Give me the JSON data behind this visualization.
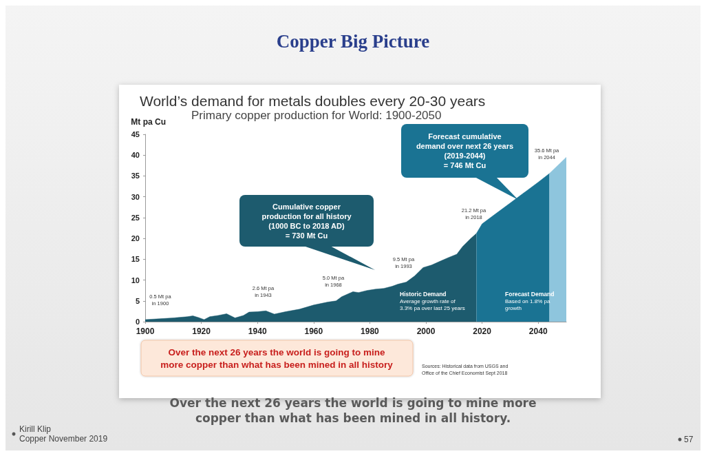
{
  "chart_data": {
    "type": "area",
    "title": "World’s demand for metals doubles every 20-30 years",
    "subtitle": "Primary copper production for World: 1900-2050",
    "ylabel": "Mt pa Cu",
    "xlim": [
      1900,
      2050
    ],
    "xticks": [
      1900,
      1920,
      1940,
      1960,
      1980,
      2000,
      2020,
      2040
    ],
    "ylim": [
      0,
      45
    ],
    "yticks": [
      0,
      5,
      10,
      15,
      20,
      25,
      30,
      35,
      40,
      45
    ],
    "grid": false,
    "series": [
      {
        "color": "#1d5b6e",
        "x": [
          1900,
          1905,
          1910,
          1915,
          1917,
          1919,
          1921,
          1923,
          1926,
          1929,
          1932,
          1935,
          1937,
          1940,
          1943,
          1946,
          1950,
          1955,
          1960,
          1965,
          1968,
          1970,
          1974,
          1976,
          1979,
          1982,
          1985,
          1988,
          1990,
          1993,
          1996,
          1999,
          2002,
          2005,
          2008,
          2011,
          2013,
          2016,
          2018
        ],
        "values": [
          0.5,
          0.7,
          0.9,
          1.2,
          1.4,
          1.0,
          0.5,
          1.2,
          1.5,
          1.9,
          0.9,
          1.5,
          2.3,
          2.4,
          2.6,
          1.8,
          2.4,
          3.0,
          4.0,
          4.7,
          5.0,
          6.0,
          7.2,
          7.0,
          7.5,
          7.8,
          8.0,
          8.5,
          9.0,
          9.5,
          11.0,
          13.0,
          13.6,
          14.5,
          15.4,
          16.2,
          18.0,
          20.0,
          21.2
        ]
      },
      {
        "color": "#1a7393",
        "x": [
          2018,
          2020,
          2025,
          2030,
          2035,
          2040,
          2044
        ],
        "values": [
          21.2,
          23.5,
          26.0,
          28.5,
          31.0,
          33.5,
          35.6
        ]
      },
      {
        "color": "#8ec5dd",
        "x": [
          2044,
          2050
        ],
        "values": [
          35.6,
          39.5
        ]
      }
    ],
    "annotations": [
      "Copper Big Picture",
      "Cumulative copper\nproduction for all history\n(1000 BC to 2018 AD)\n= 730 Mt Cu",
      "Forecast cumulative\ndemand over next 26 years\n(2019-2044)\n= 746 Mt Cu",
      {
        "text": "0.5 Mt pa\nin 1900",
        "x": 1900,
        "y": 0.5
      },
      {
        "text": "2.6 Mt pa\nin 1943",
        "x": 1943,
        "y": 2.6
      },
      {
        "text": "5.0 Mt pa\nin 1968",
        "x": 1968,
        "y": 5.0
      },
      {
        "text": "9.5 Mt pa\nin 1993",
        "x": 1993,
        "y": 9.5
      },
      {
        "text": "21.2 Mt pa\nin 2018",
        "x": 2018,
        "y": 21.2
      },
      {
        "text": "35.6 Mt pa\nin 2044",
        "x": 2044,
        "y": 35.6
      },
      "Historic Demand\nAverage growth rate of\n3.3% pa over last 25 years",
      "Forecast Demand\nBased on 1.8% pa\ngrowth",
      "Over the next 26 years the world is going to mine\nmore copper than what has been mined in all history",
      "Sources: Historical data from USGS and\nOffice of the Chief Economist Sept 2018",
      "Over the next 26 years the world is going to mine more\ncopper than what has been mined in all history.",
      "Kirill Klip\nCopper November 2019",
      "57"
    ]
  }
}
